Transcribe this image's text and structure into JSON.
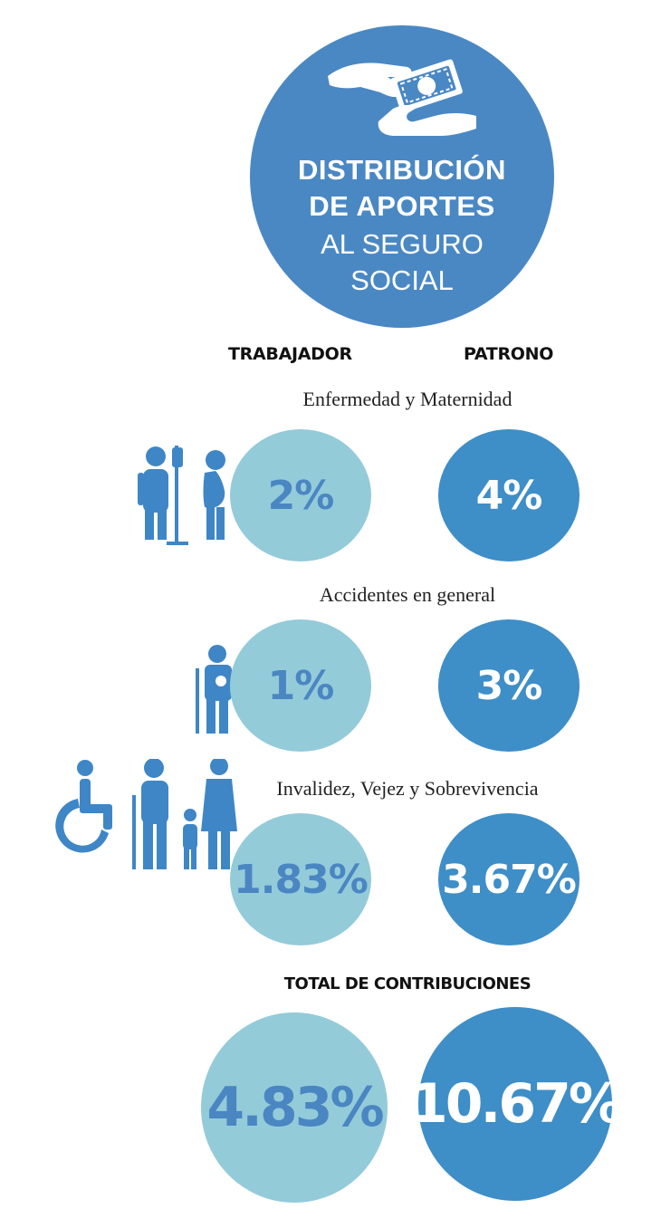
{
  "header": {
    "title_line1": "DISTRIBUCIÓN",
    "title_line2": "DE APORTES",
    "title_line3": "AL SEGURO",
    "title_line4": "SOCIAL",
    "icon": "money-hands-icon"
  },
  "columns": {
    "worker": "TRABAJADOR",
    "employer": "PATRONO"
  },
  "sections": [
    {
      "title": "Enfermedad y Maternidad",
      "worker": "2%",
      "employer": "4%",
      "icon": "patient-pregnant-icon"
    },
    {
      "title": "Accidentes en general",
      "worker": "1%",
      "employer": "3%",
      "icon": "injured-person-icon"
    },
    {
      "title": "Invalidez, Vejez y Sobrevivencia",
      "worker": "1.83%",
      "employer": "3.67%",
      "icon": "disability-elderly-family-icon"
    }
  ],
  "total": {
    "label": "TOTAL DE CONTRIBUCIONES",
    "worker": "4.83%",
    "employer": "10.67%"
  },
  "colors": {
    "header_blue": "#4a88c4",
    "light_circle": "#93cbd9",
    "dark_circle": "#3e8ec8",
    "icon_blue": "#3f86c6"
  }
}
